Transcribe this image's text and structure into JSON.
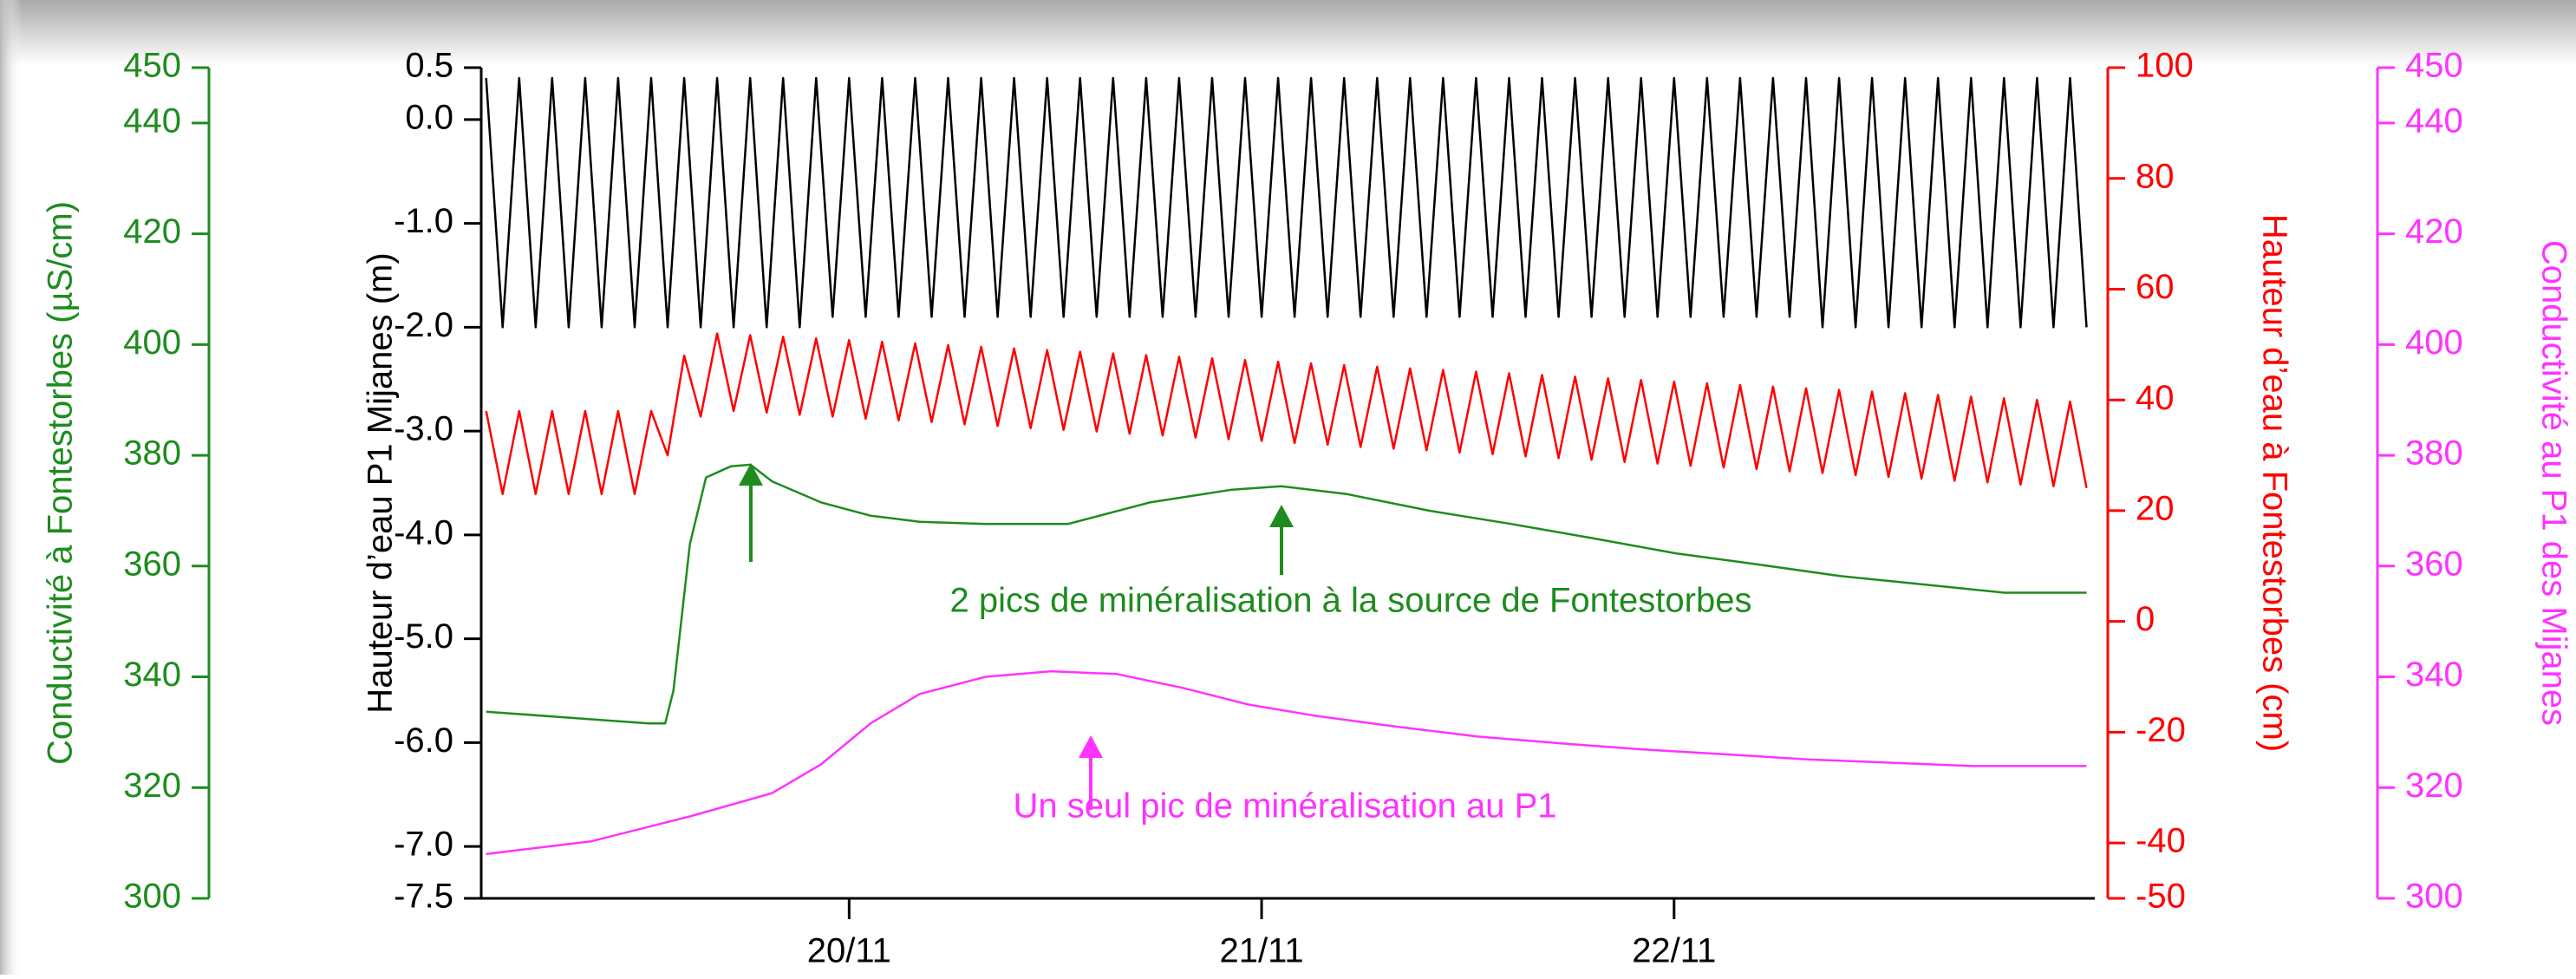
{
  "chart_data": {
    "type": "line",
    "x": [
      19.12,
      19.16,
      19.2,
      19.24,
      19.28,
      19.32,
      19.36,
      19.4,
      19.44,
      19.48,
      19.52,
      19.56,
      19.6,
      19.64,
      19.68,
      19.72,
      19.76,
      19.8,
      19.84,
      19.88,
      19.92,
      19.96,
      20,
      20.04,
      20.08,
      20.12,
      20.16,
      20.2,
      20.24,
      20.28,
      20.32,
      20.36,
      20.4,
      20.44,
      20.48,
      20.52,
      20.56,
      20.6,
      20.64,
      20.68,
      20.72,
      20.76,
      20.8,
      20.84,
      20.88,
      20.92,
      20.96,
      21,
      21.04,
      21.08,
      21.12,
      21.16,
      21.2,
      21.24,
      21.28,
      21.32,
      21.36,
      21.4,
      21.44,
      21.48,
      21.52,
      21.56,
      21.6,
      21.64,
      21.68,
      21.72,
      21.76,
      21.8,
      21.84,
      21.88,
      21.92,
      21.96,
      22,
      22.04,
      22.08,
      22.12,
      22.16,
      22.2,
      22.24,
      22.28,
      22.32,
      22.36,
      22.4,
      22.44,
      22.48,
      22.52,
      22.56,
      22.6,
      22.64,
      22.68,
      22.72,
      22.76,
      22.8,
      22.84,
      22.88,
      22.92,
      22.96,
      23
    ],
    "xlim": [
      19.108,
      23.02
    ],
    "xticks": [
      {
        "value": 20,
        "label": "20/11"
      },
      {
        "value": 21,
        "label": "21/11"
      },
      {
        "value": 22,
        "label": "22/11"
      }
    ],
    "ylabel": "Hauteur d’eau P1 Mijanes (m)",
    "ylim": [
      -7.5,
      0.5
    ],
    "yticks": [
      -7.5,
      {
        "value": -7,
        "label": "-7.0"
      },
      {
        "value": -6,
        "label": "-6.0"
      },
      {
        "value": -5,
        "label": "-5.0"
      },
      {
        "value": -4,
        "label": "-4.0"
      },
      {
        "value": -3,
        "label": "-3.0"
      },
      {
        "value": -2,
        "label": "-2.0"
      },
      {
        "value": -1,
        "label": "-1.0"
      },
      {
        "value": 0,
        "label": "0.0"
      },
      0.5
    ],
    "y2label": "Hauteur d’eau à Fontestorbes (cm)",
    "y2lim": [
      -50,
      100
    ],
    "y2ticks": [
      -50,
      -40,
      -20,
      0,
      20,
      40,
      60,
      80,
      100
    ],
    "y3label": "Conductivité à Fontestorbes (µS/cm)",
    "y3lim": [
      300,
      450
    ],
    "y3ticks": [
      300,
      320,
      340,
      360,
      380,
      400,
      420,
      440,
      450
    ],
    "y4label": "Conductivité au P1 des Mijanes",
    "y4lim": [
      300,
      450
    ],
    "y4ticks": [
      300,
      320,
      340,
      360,
      380,
      400,
      420,
      440,
      450
    ],
    "annotations": [
      "2 pics de minéralisation à la source de Fontestorbes",
      "Un seul pic de minéralisation au P1"
    ],
    "series": [
      {
        "color": "#000000",
        "values": [
          0.4,
          -2.0,
          0.4,
          -2.0,
          0.4,
          -2.0,
          0.4,
          -2.0,
          0.4,
          -2.0,
          0.4,
          -2.0,
          0.4,
          -2.0,
          0.4,
          -2.0,
          0.4,
          -2.0,
          0.4,
          -2.0,
          0.4,
          -1.9,
          0.4,
          -1.9,
          0.4,
          -1.9,
          0.4,
          -1.9,
          0.4,
          -1.9,
          0.4,
          -1.9,
          0.4,
          -1.9,
          0.4,
          -1.9,
          0.4,
          -1.9,
          0.4,
          -1.9,
          0.4,
          -1.9,
          0.4,
          -1.9,
          0.4,
          -1.9,
          0.4,
          -1.9,
          0.4,
          -1.9,
          0.4,
          -1.9,
          0.4,
          -1.9,
          0.4,
          -1.9,
          0.4,
          -1.9,
          0.4,
          -1.9,
          0.4,
          -1.9,
          0.4,
          -1.9,
          0.4,
          -1.9,
          0.4,
          -1.9,
          0.4,
          -1.9,
          0.4,
          -1.9,
          0.4,
          -1.9,
          0.4,
          -1.9,
          0.4,
          -1.9,
          0.4,
          -1.9,
          0.4,
          -2.0,
          0.4,
          -2.0,
          0.4,
          -2.0,
          0.4,
          -2.0,
          0.4,
          -2.0,
          0.4,
          -2.0,
          0.4,
          -2.0,
          0.4,
          -2.0,
          0.4,
          -2.0
        ]
      },
      {
        "color": "#ff0000",
        "axis": "y2",
        "values": [
          38,
          23,
          38,
          23,
          38,
          23,
          38,
          23,
          38,
          23,
          38,
          30,
          48,
          37,
          52,
          38,
          51.7,
          37.7,
          51.4,
          37.3,
          51.1,
          37,
          50.8,
          36.6,
          50.5,
          36.3,
          50.2,
          36,
          49.9,
          35.6,
          49.6,
          35.3,
          49.3,
          34.9,
          49,
          34.6,
          48.7,
          34.3,
          48.4,
          33.9,
          48.1,
          33.6,
          47.8,
          33.2,
          47.5,
          32.9,
          47.2,
          32.6,
          46.9,
          32.2,
          46.6,
          31.9,
          46.3,
          31.5,
          46,
          31.2,
          45.7,
          30.9,
          45.4,
          30.5,
          45.1,
          30.2,
          44.8,
          29.8,
          44.5,
          29.5,
          44.2,
          29.2,
          43.9,
          28.8,
          43.6,
          28.5,
          43.3,
          28.1,
          43,
          27.8,
          42.7,
          27.5,
          42.4,
          27.1,
          42.1,
          26.8,
          41.8,
          26.4,
          41.5,
          26.1,
          41.2,
          25.8,
          40.9,
          25.4,
          40.6,
          25.1,
          40.3,
          24.7,
          40,
          24.4,
          39.7,
          24.1
        ]
      },
      {
        "color": "#1e8c1e",
        "axis": "y3",
        "x": [
          19.12,
          19.514,
          19.554,
          19.574,
          19.614,
          19.653,
          19.713,
          19.761,
          19.813,
          19.932,
          20.052,
          20.171,
          20.331,
          20.53,
          20.729,
          20.928,
          21.048,
          21.207,
          21.406,
          21.606,
          21.805,
          22.004,
          22.203,
          22.402,
          22.602,
          22.801,
          23
        ],
        "values": [
          333.7,
          331.6,
          331.6,
          337.5,
          364,
          376,
          378,
          378.3,
          375.3,
          371.5,
          369.1,
          368,
          367.6,
          367.6,
          371.5,
          373.8,
          374.4,
          373,
          370,
          367.6,
          365,
          362.3,
          360.3,
          358.2,
          356.7,
          355.2,
          355.2
        ]
      },
      {
        "color": "#ff33ff",
        "axis": "y4",
        "x": [
          19.12,
          19.375,
          19.614,
          19.813,
          19.932,
          20.052,
          20.171,
          20.331,
          20.49,
          20.649,
          20.809,
          20.968,
          21.127,
          21.327,
          21.526,
          21.725,
          21.924,
          22.124,
          22.323,
          22.522,
          22.721,
          23
        ],
        "values": [
          308,
          310.3,
          314.8,
          319,
          324.2,
          331.6,
          336.9,
          340,
          341,
          340.5,
          338,
          335,
          333,
          331,
          329.2,
          328,
          326.9,
          326,
          325.1,
          324.5,
          323.9,
          323.9
        ]
      }
    ]
  }
}
